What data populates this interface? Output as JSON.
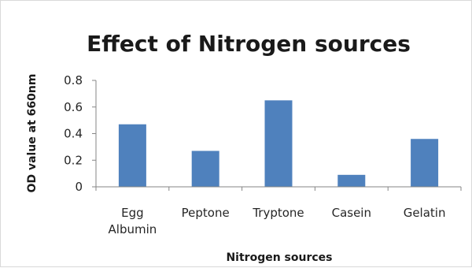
{
  "chart_data": {
    "type": "bar",
    "title": "Effect of Nitrogen sources",
    "xlabel": "Nitrogen sources",
    "ylabel": "OD value at 660nm",
    "categories": [
      [
        "Egg",
        "Albumin"
      ],
      [
        "Peptone"
      ],
      [
        "Tryptone"
      ],
      [
        "Casein"
      ],
      [
        "Gelatin"
      ]
    ],
    "values": [
      0.47,
      0.27,
      0.65,
      0.09,
      0.36
    ],
    "ylim": [
      0,
      0.8
    ],
    "yticks": [
      "0",
      "0.2",
      "0.4",
      "0.6",
      "0.8"
    ],
    "ytick_values": [
      0,
      0.2,
      0.4,
      0.6,
      0.8
    ],
    "grid": false,
    "legend": "none",
    "bar_color": "#4f81bd",
    "axis_color": "#868686"
  }
}
